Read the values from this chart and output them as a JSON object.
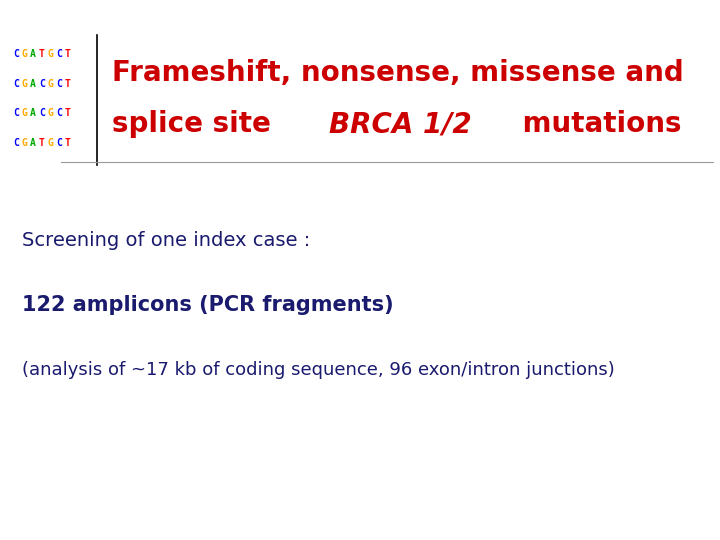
{
  "background_color": "#ffffff",
  "title_line1": "Frameshift, nonsense, missense and",
  "title_line2_a": "splice site ",
  "title_line2_b": "BRCA 1/2",
  "title_line2_c": " mutations",
  "title_color": "#cc0000",
  "title_fontsize": 20,
  "line1_text": "Screening of one index case :",
  "line1_color": "#1a1a6e",
  "line1_fontsize": 14,
  "line2_text": "122 amplicons (PCR fragments)",
  "line2_color": "#1a1a6e",
  "line2_fontsize": 15,
  "line3_text": "(analysis of ~17 kb of coding sequence, 96 exon/intron junctions)",
  "line3_color": "#1a1a6e",
  "line3_fontsize": 13,
  "dna_lines": [
    "CGATGCT",
    "CGACGCT",
    "CGACGCT",
    "CGATGCT"
  ],
  "dna_colors": {
    "C": "#0000ff",
    "G": "#ffaa00",
    "A": "#00aa00",
    "T": "#ff0000"
  }
}
